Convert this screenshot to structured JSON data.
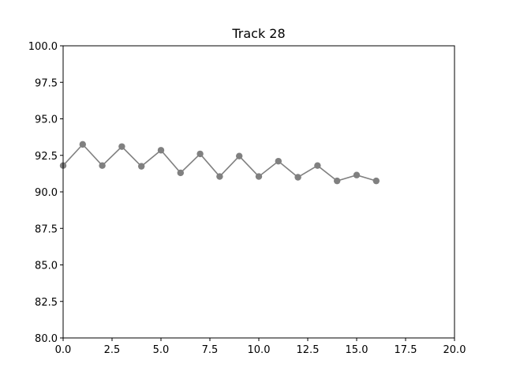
{
  "chart_data": {
    "type": "line",
    "title": "Track 28",
    "xlabel": "",
    "ylabel": "",
    "xlim": [
      0,
      20
    ],
    "ylim": [
      80,
      100
    ],
    "x_ticks": [
      0,
      2.5,
      5,
      7.5,
      10,
      12.5,
      15,
      17.5,
      20
    ],
    "x_tick_labels": [
      "0.0",
      "2.5",
      "5.0",
      "7.5",
      "10.0",
      "12.5",
      "15.0",
      "17.5",
      "20.0"
    ],
    "y_ticks": [
      80,
      82.5,
      85,
      87.5,
      90,
      92.5,
      95,
      97.5,
      100
    ],
    "y_tick_labels": [
      "80.0",
      "82.5",
      "85.0",
      "87.5",
      "90.0",
      "92.5",
      "95.0",
      "97.5",
      "100.0"
    ],
    "grid": false,
    "series": [
      {
        "color": "#808080",
        "marker": "circle",
        "x": [
          0,
          1,
          2,
          3,
          4,
          5,
          6,
          7,
          8,
          9,
          10,
          11,
          12,
          13,
          14,
          15,
          16
        ],
        "values": [
          91.8,
          93.25,
          91.8,
          93.1,
          91.75,
          92.85,
          91.3,
          92.6,
          91.05,
          92.45,
          91.05,
          92.1,
          91.0,
          91.8,
          90.75,
          91.15,
          90.75
        ]
      }
    ]
  }
}
